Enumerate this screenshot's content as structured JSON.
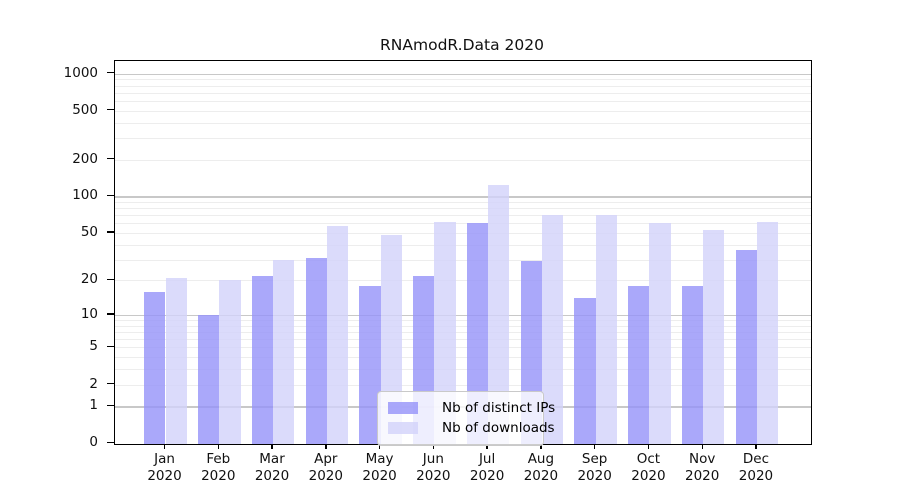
{
  "chart_data": {
    "type": "bar",
    "title": "RNAmodR.Data 2020",
    "categories": [
      "Jan",
      "Feb",
      "Mar",
      "Apr",
      "May",
      "Jun",
      "Jul",
      "Aug",
      "Sep",
      "Oct",
      "Nov",
      "Dec"
    ],
    "category_year": "2020",
    "series": [
      {
        "name": "Nb of distinct IPs",
        "color": "rgba(149,146,249,0.8)",
        "values": [
          16,
          10,
          22,
          31,
          18,
          22,
          60,
          29,
          14,
          18,
          18,
          36
        ]
      },
      {
        "name": "Nb of downloads",
        "color": "rgba(210,210,250,0.8)",
        "values": [
          21,
          20,
          30,
          57,
          48,
          62,
          125,
          70,
          70,
          60,
          53,
          62
        ]
      }
    ],
    "y_axis": {
      "scale": "log1p",
      "tick_labels": [
        0,
        1,
        2,
        5,
        10,
        20,
        50,
        100,
        200,
        500,
        1000
      ],
      "ylim": [
        0,
        1270
      ],
      "major_grid_values": [
        1,
        10,
        100,
        1000
      ]
    },
    "grid": true,
    "legend_position": "inside-bottom-center"
  },
  "colors": {
    "major_grid": "#c8c8c8",
    "minor_grid": "#ededed",
    "axis": "#000000",
    "background": "#ffffff",
    "legend_border": "#c9c9c9"
  }
}
